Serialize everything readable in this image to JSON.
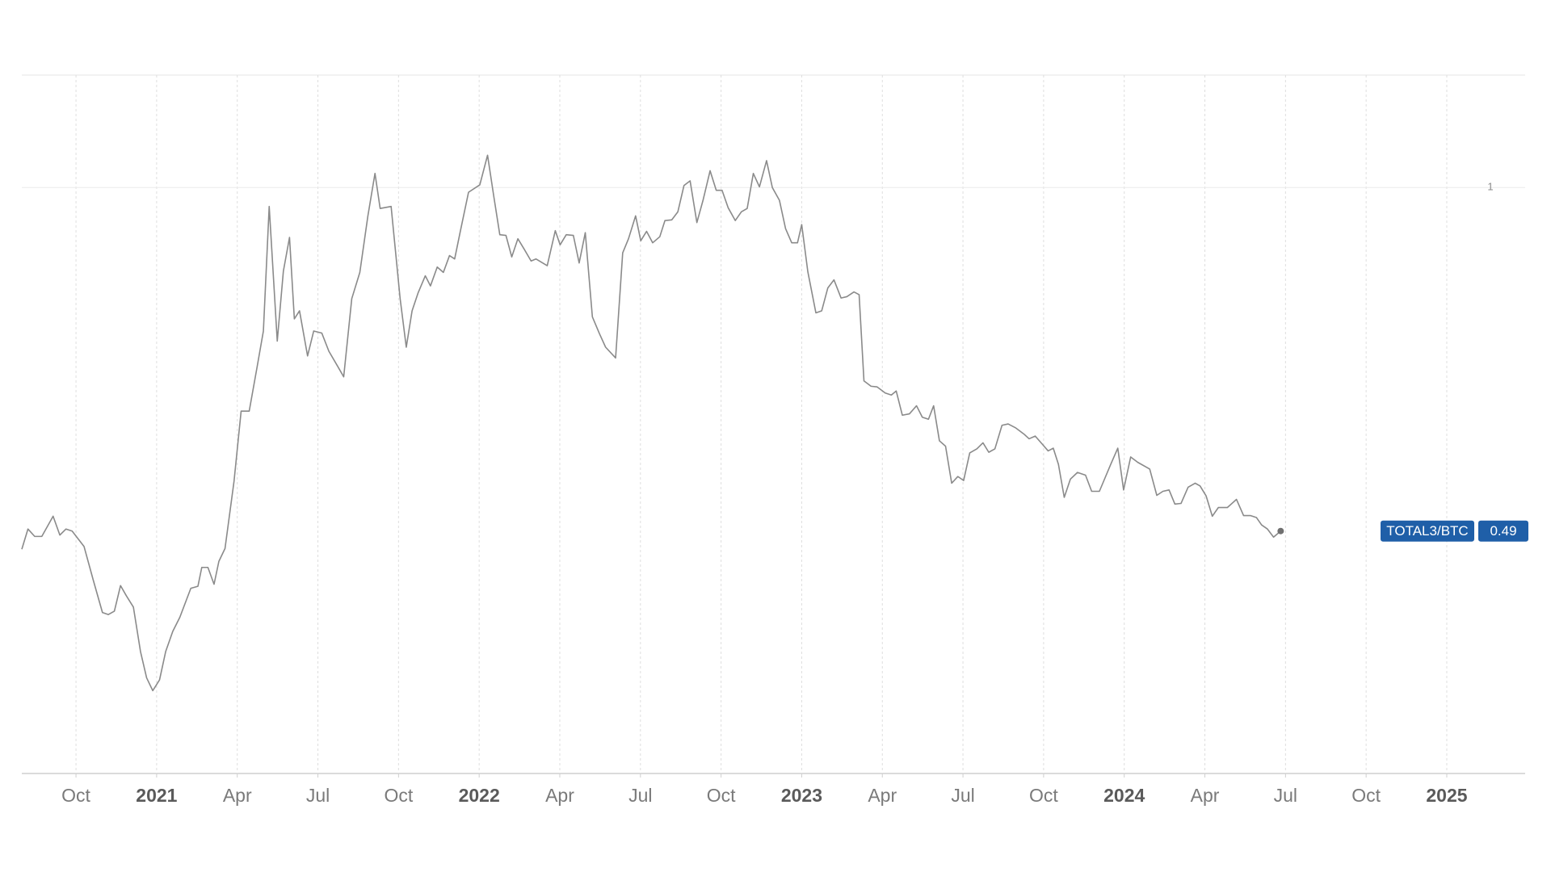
{
  "chart_data": {
    "type": "line",
    "x": [
      2020.582,
      2020.601,
      2020.622,
      2020.644,
      2020.679,
      2020.7,
      2020.719,
      2020.738,
      2020.775,
      2020.803,
      2020.832,
      2020.85,
      2020.869,
      2020.888,
      2020.906,
      2020.928,
      2020.95,
      2020.969,
      2020.988,
      2021.009,
      2021.028,
      2021.05,
      2021.072,
      2021.106,
      2021.128,
      2021.14,
      2021.159,
      2021.178,
      2021.193,
      2021.212,
      2021.24,
      2021.262,
      2021.287,
      2021.312,
      2021.331,
      2021.349,
      2021.374,
      2021.393,
      2021.412,
      2021.427,
      2021.443,
      2021.468,
      2021.487,
      2021.512,
      2021.534,
      2021.562,
      2021.58,
      2021.605,
      2021.63,
      2021.655,
      2021.677,
      2021.693,
      2021.727,
      2021.755,
      2021.774,
      2021.792,
      2021.811,
      2021.833,
      2021.849,
      2021.87,
      2021.889,
      2021.908,
      2021.924,
      2021.942,
      2021.967,
      2022.002,
      2022.026,
      2022.045,
      2022.064,
      2022.083,
      2022.101,
      2022.12,
      2022.139,
      2022.161,
      2022.176,
      2022.211,
      2022.236,
      2022.251,
      2022.27,
      2022.292,
      2022.31,
      2022.329,
      2022.351,
      2022.373,
      2022.392,
      2022.423,
      2022.445,
      2022.463,
      2022.485,
      2022.501,
      2022.519,
      2022.538,
      2022.56,
      2022.576,
      2022.597,
      2022.616,
      2022.635,
      2022.654,
      2022.675,
      2022.694,
      2022.716,
      2022.735,
      2022.753,
      2022.772,
      2022.794,
      2022.813,
      2022.831,
      2022.85,
      2022.869,
      2022.891,
      2022.909,
      2022.931,
      2022.95,
      2022.969,
      2022.987,
      2023.0,
      2023.019,
      2023.044,
      2023.062,
      2023.081,
      2023.1,
      2023.122,
      2023.14,
      2023.162,
      2023.178,
      2023.193,
      2023.215,
      2023.234,
      2023.259,
      2023.278,
      2023.293,
      2023.312,
      2023.334,
      2023.356,
      2023.374,
      2023.393,
      2023.409,
      2023.427,
      2023.446,
      2023.465,
      2023.484,
      2023.502,
      2023.521,
      2023.543,
      2023.562,
      2023.58,
      2023.599,
      2023.621,
      2023.64,
      2023.664,
      2023.689,
      2023.705,
      2023.724,
      2023.746,
      2023.764,
      2023.78,
      2023.796,
      2023.814,
      2023.833,
      2023.855,
      2023.88,
      2023.899,
      2023.923,
      2023.958,
      2023.98,
      2023.998,
      2024.02,
      2024.042,
      2024.079,
      2024.101,
      2024.12,
      2024.139,
      2024.157,
      2024.176,
      2024.198,
      2024.22,
      2024.235,
      2024.254,
      2024.273,
      2024.292,
      2024.32,
      2024.348,
      2024.37,
      2024.391,
      2024.41,
      2024.426,
      2024.444,
      2024.463,
      2024.485
    ],
    "series": [
      {
        "name": "TOTAL3/BTC",
        "color": "#8a8a8a",
        "values": [
          0.463,
          0.493,
          0.482,
          0.482,
          0.512,
          0.484,
          0.493,
          0.49,
          0.467,
          0.418,
          0.369,
          0.366,
          0.371,
          0.409,
          0.394,
          0.377,
          0.311,
          0.272,
          0.253,
          0.269,
          0.311,
          0.341,
          0.362,
          0.405,
          0.408,
          0.436,
          0.436,
          0.411,
          0.445,
          0.464,
          0.564,
          0.668,
          0.668,
          0.735,
          0.787,
          0.972,
          0.772,
          0.876,
          0.926,
          0.805,
          0.817,
          0.75,
          0.787,
          0.784,
          0.757,
          0.734,
          0.719,
          0.835,
          0.874,
          0.958,
          1.021,
          0.969,
          0.972,
          0.835,
          0.763,
          0.817,
          0.844,
          0.869,
          0.854,
          0.882,
          0.874,
          0.899,
          0.894,
          0.936,
          0.993,
          1.004,
          1.048,
          0.988,
          0.93,
          0.929,
          0.897,
          0.924,
          0.909,
          0.891,
          0.894,
          0.884,
          0.936,
          0.915,
          0.93,
          0.929,
          0.888,
          0.933,
          0.808,
          0.783,
          0.763,
          0.747,
          0.903,
          0.924,
          0.958,
          0.921,
          0.935,
          0.918,
          0.927,
          0.951,
          0.952,
          0.964,
          1.003,
          1.01,
          0.948,
          0.981,
          1.025,
          0.996,
          0.996,
          0.97,
          0.951,
          0.964,
          0.969,
          1.021,
          1.001,
          1.04,
          1.0,
          0.981,
          0.939,
          0.918,
          0.918,
          0.945,
          0.875,
          0.814,
          0.817,
          0.851,
          0.863,
          0.836,
          0.838,
          0.845,
          0.841,
          0.713,
          0.705,
          0.704,
          0.695,
          0.692,
          0.698,
          0.662,
          0.664,
          0.676,
          0.659,
          0.656,
          0.676,
          0.624,
          0.616,
          0.561,
          0.571,
          0.565,
          0.606,
          0.612,
          0.621,
          0.607,
          0.612,
          0.647,
          0.649,
          0.643,
          0.634,
          0.627,
          0.631,
          0.619,
          0.609,
          0.613,
          0.589,
          0.54,
          0.567,
          0.577,
          0.573,
          0.549,
          0.549,
          0.589,
          0.613,
          0.551,
          0.6,
          0.592,
          0.582,
          0.543,
          0.549,
          0.551,
          0.53,
          0.531,
          0.555,
          0.561,
          0.557,
          0.542,
          0.512,
          0.525,
          0.525,
          0.537,
          0.513,
          0.513,
          0.51,
          0.499,
          0.493,
          0.481,
          0.49
        ]
      }
    ],
    "xlim": [
      2020.582,
      2025.243
    ],
    "xticks": [
      {
        "value": 2020.75,
        "label": "Oct"
      },
      2021,
      {
        "value": 2021.25,
        "label": "Apr"
      },
      {
        "value": 2021.5,
        "label": "Jul"
      },
      {
        "value": 2021.75,
        "label": "Oct"
      },
      2022,
      {
        "value": 2022.25,
        "label": "Apr"
      },
      {
        "value": 2022.5,
        "label": "Jul"
      },
      {
        "value": 2022.75,
        "label": "Oct"
      },
      2023,
      {
        "value": 2023.25,
        "label": "Apr"
      },
      {
        "value": 2023.5,
        "label": "Jul"
      },
      {
        "value": 2023.75,
        "label": "Oct"
      },
      2024,
      {
        "value": 2024.25,
        "label": "Apr"
      },
      {
        "value": 2024.5,
        "label": "Jul"
      },
      {
        "value": 2024.75,
        "label": "Oct"
      },
      2025
    ],
    "ylim": [
      0.13,
      1.167
    ],
    "yticks": [
      1
    ],
    "grid": true,
    "badge_color": "#1f5fa8"
  }
}
